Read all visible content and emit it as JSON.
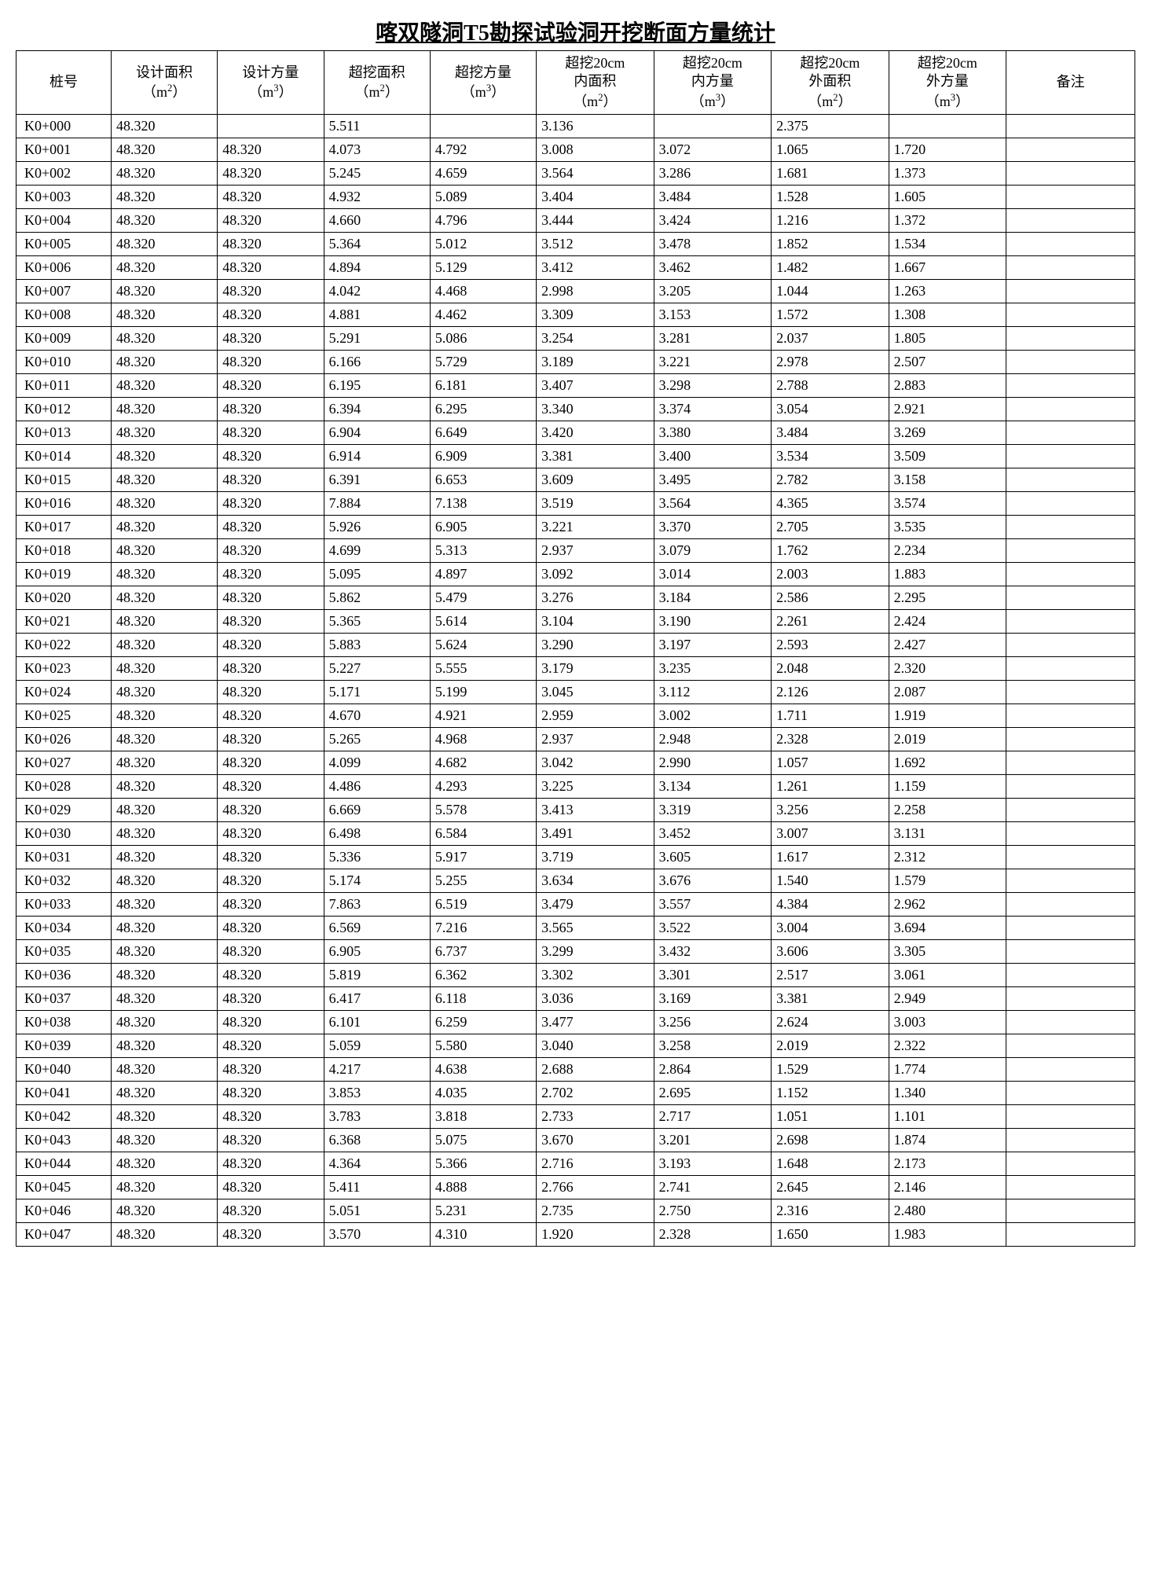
{
  "title": "喀双隧洞T5勘探试验洞开挖断面方量统计",
  "columns": [
    "桩号",
    "设计面积\n（m²）",
    "设计方量\n（m³）",
    "超挖面积\n（m²）",
    "超挖方量\n（m³）",
    "超挖20cm\n内面积\n（m²）",
    "超挖20cm\n内方量\n（m³）",
    "超挖20cm\n外面积\n（m²）",
    "超挖20cm\n外方量\n（m³）",
    "备注"
  ],
  "header_html": [
    "桩号",
    "设计面积<br>（m<sup>2</sup>）",
    "设计方量<br>（m<sup>3</sup>）",
    "超挖面积<br>（m<sup>2</sup>）",
    "超挖方量<br>（m<sup>3</sup>）",
    "超挖20cm<br>内面积<br>（m<sup>2</sup>）",
    "超挖20cm<br>内方量<br>（m<sup>3</sup>）",
    "超挖20cm<br>外面积<br>（m<sup>2</sup>）",
    "超挖20cm<br>外方量<br>（m<sup>3</sup>）",
    "备注"
  ],
  "rows": [
    [
      "K0+000",
      "48.320",
      "",
      "5.511",
      "",
      "3.136",
      "",
      "2.375",
      "",
      ""
    ],
    [
      "K0+001",
      "48.320",
      "48.320",
      "4.073",
      "4.792",
      "3.008",
      "3.072",
      "1.065",
      "1.720",
      ""
    ],
    [
      "K0+002",
      "48.320",
      "48.320",
      "5.245",
      "4.659",
      "3.564",
      "3.286",
      "1.681",
      "1.373",
      ""
    ],
    [
      "K0+003",
      "48.320",
      "48.320",
      "4.932",
      "5.089",
      "3.404",
      "3.484",
      "1.528",
      "1.605",
      ""
    ],
    [
      "K0+004",
      "48.320",
      "48.320",
      "4.660",
      "4.796",
      "3.444",
      "3.424",
      "1.216",
      "1.372",
      ""
    ],
    [
      "K0+005",
      "48.320",
      "48.320",
      "5.364",
      "5.012",
      "3.512",
      "3.478",
      "1.852",
      "1.534",
      ""
    ],
    [
      "K0+006",
      "48.320",
      "48.320",
      "4.894",
      "5.129",
      "3.412",
      "3.462",
      "1.482",
      "1.667",
      ""
    ],
    [
      "K0+007",
      "48.320",
      "48.320",
      "4.042",
      "4.468",
      "2.998",
      "3.205",
      "1.044",
      "1.263",
      ""
    ],
    [
      "K0+008",
      "48.320",
      "48.320",
      "4.881",
      "4.462",
      "3.309",
      "3.153",
      "1.572",
      "1.308",
      ""
    ],
    [
      "K0+009",
      "48.320",
      "48.320",
      "5.291",
      "5.086",
      "3.254",
      "3.281",
      "2.037",
      "1.805",
      ""
    ],
    [
      "K0+010",
      "48.320",
      "48.320",
      "6.166",
      "5.729",
      "3.189",
      "3.221",
      "2.978",
      "2.507",
      ""
    ],
    [
      "K0+011",
      "48.320",
      "48.320",
      "6.195",
      "6.181",
      "3.407",
      "3.298",
      "2.788",
      "2.883",
      ""
    ],
    [
      "K0+012",
      "48.320",
      "48.320",
      "6.394",
      "6.295",
      "3.340",
      "3.374",
      "3.054",
      "2.921",
      ""
    ],
    [
      "K0+013",
      "48.320",
      "48.320",
      "6.904",
      "6.649",
      "3.420",
      "3.380",
      "3.484",
      "3.269",
      ""
    ],
    [
      "K0+014",
      "48.320",
      "48.320",
      "6.914",
      "6.909",
      "3.381",
      "3.400",
      "3.534",
      "3.509",
      ""
    ],
    [
      "K0+015",
      "48.320",
      "48.320",
      "6.391",
      "6.653",
      "3.609",
      "3.495",
      "2.782",
      "3.158",
      ""
    ],
    [
      "K0+016",
      "48.320",
      "48.320",
      "7.884",
      "7.138",
      "3.519",
      "3.564",
      "4.365",
      "3.574",
      ""
    ],
    [
      "K0+017",
      "48.320",
      "48.320",
      "5.926",
      "6.905",
      "3.221",
      "3.370",
      "2.705",
      "3.535",
      ""
    ],
    [
      "K0+018",
      "48.320",
      "48.320",
      "4.699",
      "5.313",
      "2.937",
      "3.079",
      "1.762",
      "2.234",
      ""
    ],
    [
      "K0+019",
      "48.320",
      "48.320",
      "5.095",
      "4.897",
      "3.092",
      "3.014",
      "2.003",
      "1.883",
      ""
    ],
    [
      "K0+020",
      "48.320",
      "48.320",
      "5.862",
      "5.479",
      "3.276",
      "3.184",
      "2.586",
      "2.295",
      ""
    ],
    [
      "K0+021",
      "48.320",
      "48.320",
      "5.365",
      "5.614",
      "3.104",
      "3.190",
      "2.261",
      "2.424",
      ""
    ],
    [
      "K0+022",
      "48.320",
      "48.320",
      "5.883",
      "5.624",
      "3.290",
      "3.197",
      "2.593",
      "2.427",
      ""
    ],
    [
      "K0+023",
      "48.320",
      "48.320",
      "5.227",
      "5.555",
      "3.179",
      "3.235",
      "2.048",
      "2.320",
      ""
    ],
    [
      "K0+024",
      "48.320",
      "48.320",
      "5.171",
      "5.199",
      "3.045",
      "3.112",
      "2.126",
      "2.087",
      ""
    ],
    [
      "K0+025",
      "48.320",
      "48.320",
      "4.670",
      "4.921",
      "2.959",
      "3.002",
      "1.711",
      "1.919",
      ""
    ],
    [
      "K0+026",
      "48.320",
      "48.320",
      "5.265",
      "4.968",
      "2.937",
      "2.948",
      "2.328",
      "2.019",
      ""
    ],
    [
      "K0+027",
      "48.320",
      "48.320",
      "4.099",
      "4.682",
      "3.042",
      "2.990",
      "1.057",
      "1.692",
      ""
    ],
    [
      "K0+028",
      "48.320",
      "48.320",
      "4.486",
      "4.293",
      "3.225",
      "3.134",
      "1.261",
      "1.159",
      ""
    ],
    [
      "K0+029",
      "48.320",
      "48.320",
      "6.669",
      "5.578",
      "3.413",
      "3.319",
      "3.256",
      "2.258",
      ""
    ],
    [
      "K0+030",
      "48.320",
      "48.320",
      "6.498",
      "6.584",
      "3.491",
      "3.452",
      "3.007",
      "3.131",
      ""
    ],
    [
      "K0+031",
      "48.320",
      "48.320",
      "5.336",
      "5.917",
      "3.719",
      "3.605",
      "1.617",
      "2.312",
      ""
    ],
    [
      "K0+032",
      "48.320",
      "48.320",
      "5.174",
      "5.255",
      "3.634",
      "3.676",
      "1.540",
      "1.579",
      ""
    ],
    [
      "K0+033",
      "48.320",
      "48.320",
      "7.863",
      "6.519",
      "3.479",
      "3.557",
      "4.384",
      "2.962",
      ""
    ],
    [
      "K0+034",
      "48.320",
      "48.320",
      "6.569",
      "7.216",
      "3.565",
      "3.522",
      "3.004",
      "3.694",
      ""
    ],
    [
      "K0+035",
      "48.320",
      "48.320",
      "6.905",
      "6.737",
      "3.299",
      "3.432",
      "3.606",
      "3.305",
      ""
    ],
    [
      "K0+036",
      "48.320",
      "48.320",
      "5.819",
      "6.362",
      "3.302",
      "3.301",
      "2.517",
      "3.061",
      ""
    ],
    [
      "K0+037",
      "48.320",
      "48.320",
      "6.417",
      "6.118",
      "3.036",
      "3.169",
      "3.381",
      "2.949",
      ""
    ],
    [
      "K0+038",
      "48.320",
      "48.320",
      "6.101",
      "6.259",
      "3.477",
      "3.256",
      "2.624",
      "3.003",
      ""
    ],
    [
      "K0+039",
      "48.320",
      "48.320",
      "5.059",
      "5.580",
      "3.040",
      "3.258",
      "2.019",
      "2.322",
      ""
    ],
    [
      "K0+040",
      "48.320",
      "48.320",
      "4.217",
      "4.638",
      "2.688",
      "2.864",
      "1.529",
      "1.774",
      ""
    ],
    [
      "K0+041",
      "48.320",
      "48.320",
      "3.853",
      "4.035",
      "2.702",
      "2.695",
      "1.152",
      "1.340",
      ""
    ],
    [
      "K0+042",
      "48.320",
      "48.320",
      "3.783",
      "3.818",
      "2.733",
      "2.717",
      "1.051",
      "1.101",
      ""
    ],
    [
      "K0+043",
      "48.320",
      "48.320",
      "6.368",
      "5.075",
      "3.670",
      "3.201",
      "2.698",
      "1.874",
      ""
    ],
    [
      "K0+044",
      "48.320",
      "48.320",
      "4.364",
      "5.366",
      "2.716",
      "3.193",
      "1.648",
      "2.173",
      ""
    ],
    [
      "K0+045",
      "48.320",
      "48.320",
      "5.411",
      "4.888",
      "2.766",
      "2.741",
      "2.645",
      "2.146",
      ""
    ],
    [
      "K0+046",
      "48.320",
      "48.320",
      "5.051",
      "5.231",
      "2.735",
      "2.750",
      "2.316",
      "2.480",
      ""
    ],
    [
      "K0+047",
      "48.320",
      "48.320",
      "3.570",
      "4.310",
      "1.920",
      "2.328",
      "1.650",
      "1.983",
      ""
    ]
  ],
  "style": {
    "background_color": "#ffffff",
    "border_color": "#000000",
    "text_color": "#000000",
    "title_fontsize": 28,
    "cell_fontsize": 18,
    "font_family": "SimSun"
  }
}
